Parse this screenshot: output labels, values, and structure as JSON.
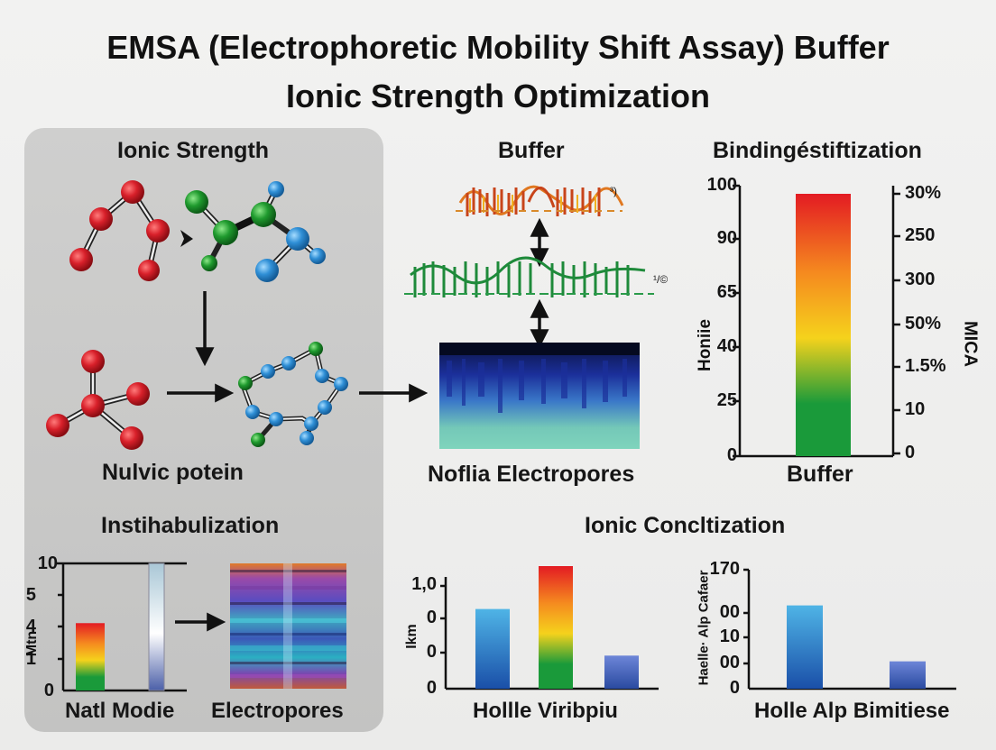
{
  "title": {
    "line1": "EMSA (Electrophoretic Mobility Shift Assay) Buffer",
    "line2": "Ionic Strength Optimization"
  },
  "left_panel": {
    "header": "Ionic Strength",
    "caption": "Nulvic potein"
  },
  "buffer_panel": {
    "header": "Buffer",
    "caption": "Noflia Electropores",
    "wave_annot_1": "³)",
    "wave_annot_2": "¹/©"
  },
  "binding_chart": {
    "header": "Bindingéstiftization",
    "ylabel_left": "Honiie",
    "ylabel_right": "MICA",
    "xlabel": "Buffer",
    "left_ticks": [
      "100",
      "90",
      "65",
      "40",
      "25",
      "0"
    ],
    "right_ticks": [
      "30%",
      "250",
      "300",
      "50%",
      "1.5%",
      "10",
      "0"
    ]
  },
  "instab_panel": {
    "header": "Instihabulization",
    "ylabel": "Mtn",
    "ticks": [
      "10",
      "5",
      "4",
      "1",
      "0"
    ],
    "xlabel_left": "Natl Modie",
    "xlabel_right": "Electropores"
  },
  "ionic_conc": {
    "header": "Ionic Concltization",
    "chart1": {
      "ylabel": "Ikm",
      "ticks": [
        "1,0",
        "0",
        "0",
        "0"
      ],
      "xlabel": "Hollle Viribpiu"
    },
    "chart2": {
      "ylabel": "Haelle· Alp Cafaer",
      "ticks": [
        "170",
        "00",
        "10",
        "00",
        "0"
      ],
      "xlabel": "Holle Alp Bimitiese"
    }
  },
  "chart_data": [
    {
      "type": "bar",
      "title": "Bindingéstiftization",
      "xlabel": "Buffer",
      "ylabel": "Honiie",
      "categories": [
        "Buffer"
      ],
      "values": [
        97
      ],
      "ylim": [
        0,
        100
      ]
    },
    {
      "type": "bar",
      "title": "Instihabulization",
      "ylabel": "Mtn",
      "categories": [
        "Natl Modie"
      ],
      "values": [
        5.3
      ],
      "ylim": [
        0,
        10
      ]
    },
    {
      "type": "bar",
      "title": "Ionic Concltization",
      "xlabel": "Hollle Viribpiu",
      "ylabel": "Ikm",
      "categories": [
        "",
        "",
        ""
      ],
      "values": [
        0.65,
        1.0,
        0.27
      ],
      "ylim": [
        0,
        1.0
      ]
    },
    {
      "type": "bar",
      "xlabel": "Holle Alp Bimitiese",
      "ylabel": "Haelle· Alp Cafaer",
      "categories": [
        "",
        ""
      ],
      "values": [
        0.7,
        0.23
      ],
      "ylim": [
        0,
        1
      ]
    }
  ],
  "colors": {
    "atom_red": "#d8202a",
    "atom_green": "#1f9a2e",
    "atom_blue": "#2f8fd6",
    "gradient_top": "#e31b23",
    "gradient_mid": "#f5d21c",
    "gradient_bottom": "#1a9a3a",
    "bar_blue_top": "#4fb4e6",
    "bar_blue_bottom": "#1a4fa8"
  }
}
